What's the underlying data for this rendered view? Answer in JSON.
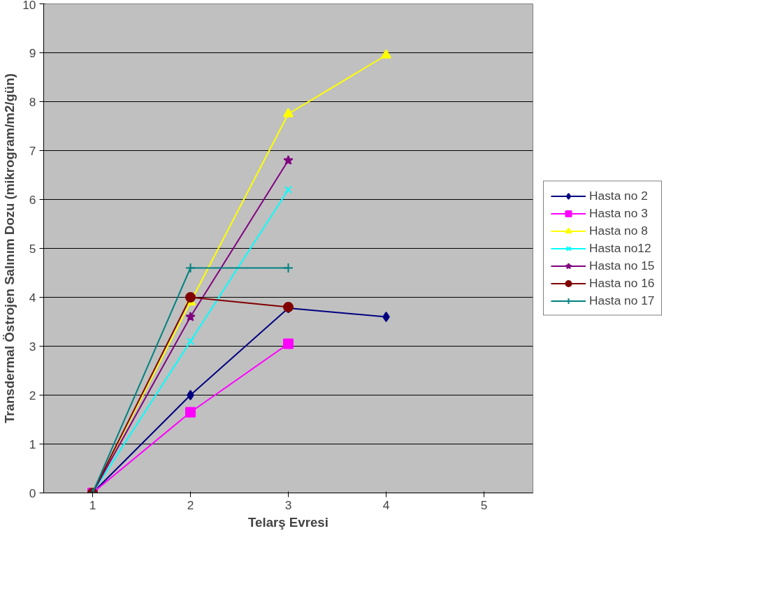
{
  "chart_data": {
    "type": "line",
    "xlabel": "Telarş Evresi",
    "ylabel": "Transdermal Östrojen Salınım Dozu (mikrogram/m2/gün)",
    "categories": [
      "1",
      "2",
      "3",
      "4",
      "5"
    ],
    "series": [
      {
        "name": "Hasta no 2",
        "color": "#000080",
        "marker": "diamond",
        "values": [
          0,
          2.0,
          3.78,
          3.6,
          null
        ]
      },
      {
        "name": "Hasta no 3",
        "color": "#ff00ff",
        "marker": "square",
        "values": [
          0,
          1.65,
          3.05,
          null,
          null
        ]
      },
      {
        "name": "Hasta no 8",
        "color": "#ffff00",
        "marker": "triangle",
        "values": [
          0,
          3.9,
          7.75,
          8.95,
          null
        ]
      },
      {
        "name": "Hasta no12",
        "color": "#00ffff",
        "marker": "x",
        "values": [
          0,
          3.1,
          6.2,
          null,
          null
        ]
      },
      {
        "name": "Hasta no 15",
        "color": "#800080",
        "marker": "star",
        "values": [
          0,
          3.6,
          6.8,
          null,
          null
        ]
      },
      {
        "name": "Hasta no 16",
        "color": "#800000",
        "marker": "circle",
        "values": [
          0,
          4.0,
          3.8,
          null,
          null
        ]
      },
      {
        "name": "Hasta no 17",
        "color": "#008080",
        "marker": "cross",
        "values": [
          0,
          4.6,
          4.6,
          null,
          null
        ]
      }
    ],
    "ylim": [
      0,
      10
    ],
    "yticks": [
      0,
      1,
      2,
      3,
      4,
      5,
      6,
      7,
      8,
      9,
      10
    ],
    "grid": "y",
    "legend": "right"
  }
}
